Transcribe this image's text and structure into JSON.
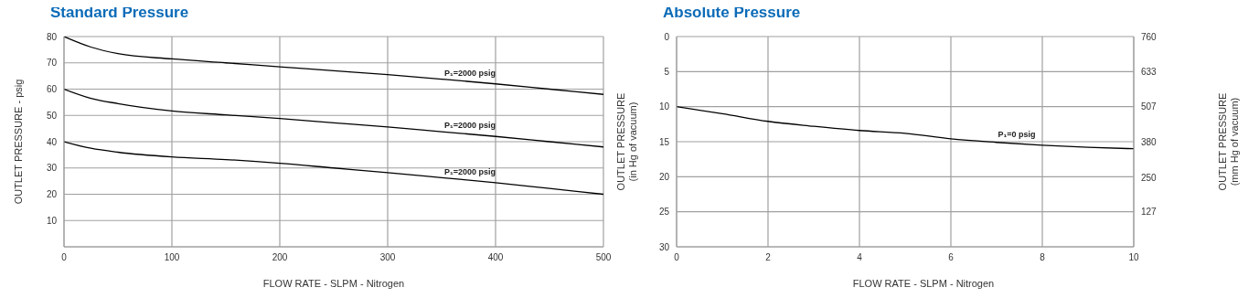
{
  "chart_data": [
    {
      "type": "line",
      "title": "Standard Pressure",
      "xlabel": "FLOW RATE - SLPM - Nitrogen",
      "ylabel": "OUTLET PRESSURE - psig",
      "xlim": [
        0,
        500
      ],
      "xticks": [
        0,
        100,
        200,
        300,
        400,
        500
      ],
      "ylim": [
        0,
        80
      ],
      "yticks": [
        10,
        20,
        30,
        40,
        50,
        60,
        70,
        80
      ],
      "grid": true,
      "x": [
        0,
        25,
        50,
        100,
        150,
        200,
        250,
        300,
        350,
        400,
        450,
        500
      ],
      "series": [
        {
          "name": "P₁=2000 psig",
          "color": "#000000",
          "values": [
            80,
            76,
            73.5,
            71.5,
            70,
            68.5,
            67,
            65.5,
            63.8,
            62,
            60,
            58
          ]
        },
        {
          "name": "P₁=2000 psig",
          "color": "#000000",
          "values": [
            60,
            56.5,
            54.5,
            51.7,
            50.2,
            48.8,
            47.2,
            45.6,
            43.8,
            42,
            40,
            38
          ]
        },
        {
          "name": "P₁=2000 psig",
          "color": "#000000",
          "values": [
            40,
            37.5,
            36,
            34.2,
            33.2,
            31.8,
            30,
            28.2,
            26.3,
            24.4,
            22.2,
            20
          ]
        }
      ]
    },
    {
      "type": "line",
      "title": "Absolute Pressure",
      "xlabel": "FLOW RATE - SLPM - Nitrogen",
      "ylabel": "OUTLET PRESSURE\n(in Hg of vacuum)",
      "y2label": "OUTLET PRESSURE\n(mm Hg of vacuum)",
      "xlim": [
        0,
        10
      ],
      "xticks": [
        0,
        2,
        4,
        6,
        8,
        10
      ],
      "ylim": [
        30,
        0
      ],
      "yticks": [
        0,
        5,
        10,
        15,
        20,
        25,
        30
      ],
      "y2lim": [
        0,
        760
      ],
      "y2ticks": [
        127,
        250,
        380,
        507,
        633,
        760
      ],
      "grid": true,
      "x": [
        0,
        1,
        2,
        3,
        4,
        5,
        6,
        7,
        8,
        9,
        10
      ],
      "series": [
        {
          "name": "P₁=0 psig",
          "color": "#000000",
          "values": [
            10,
            11,
            12.1,
            12.8,
            13.4,
            13.8,
            14.6,
            15.1,
            15.5,
            15.8,
            16
          ]
        }
      ]
    }
  ]
}
